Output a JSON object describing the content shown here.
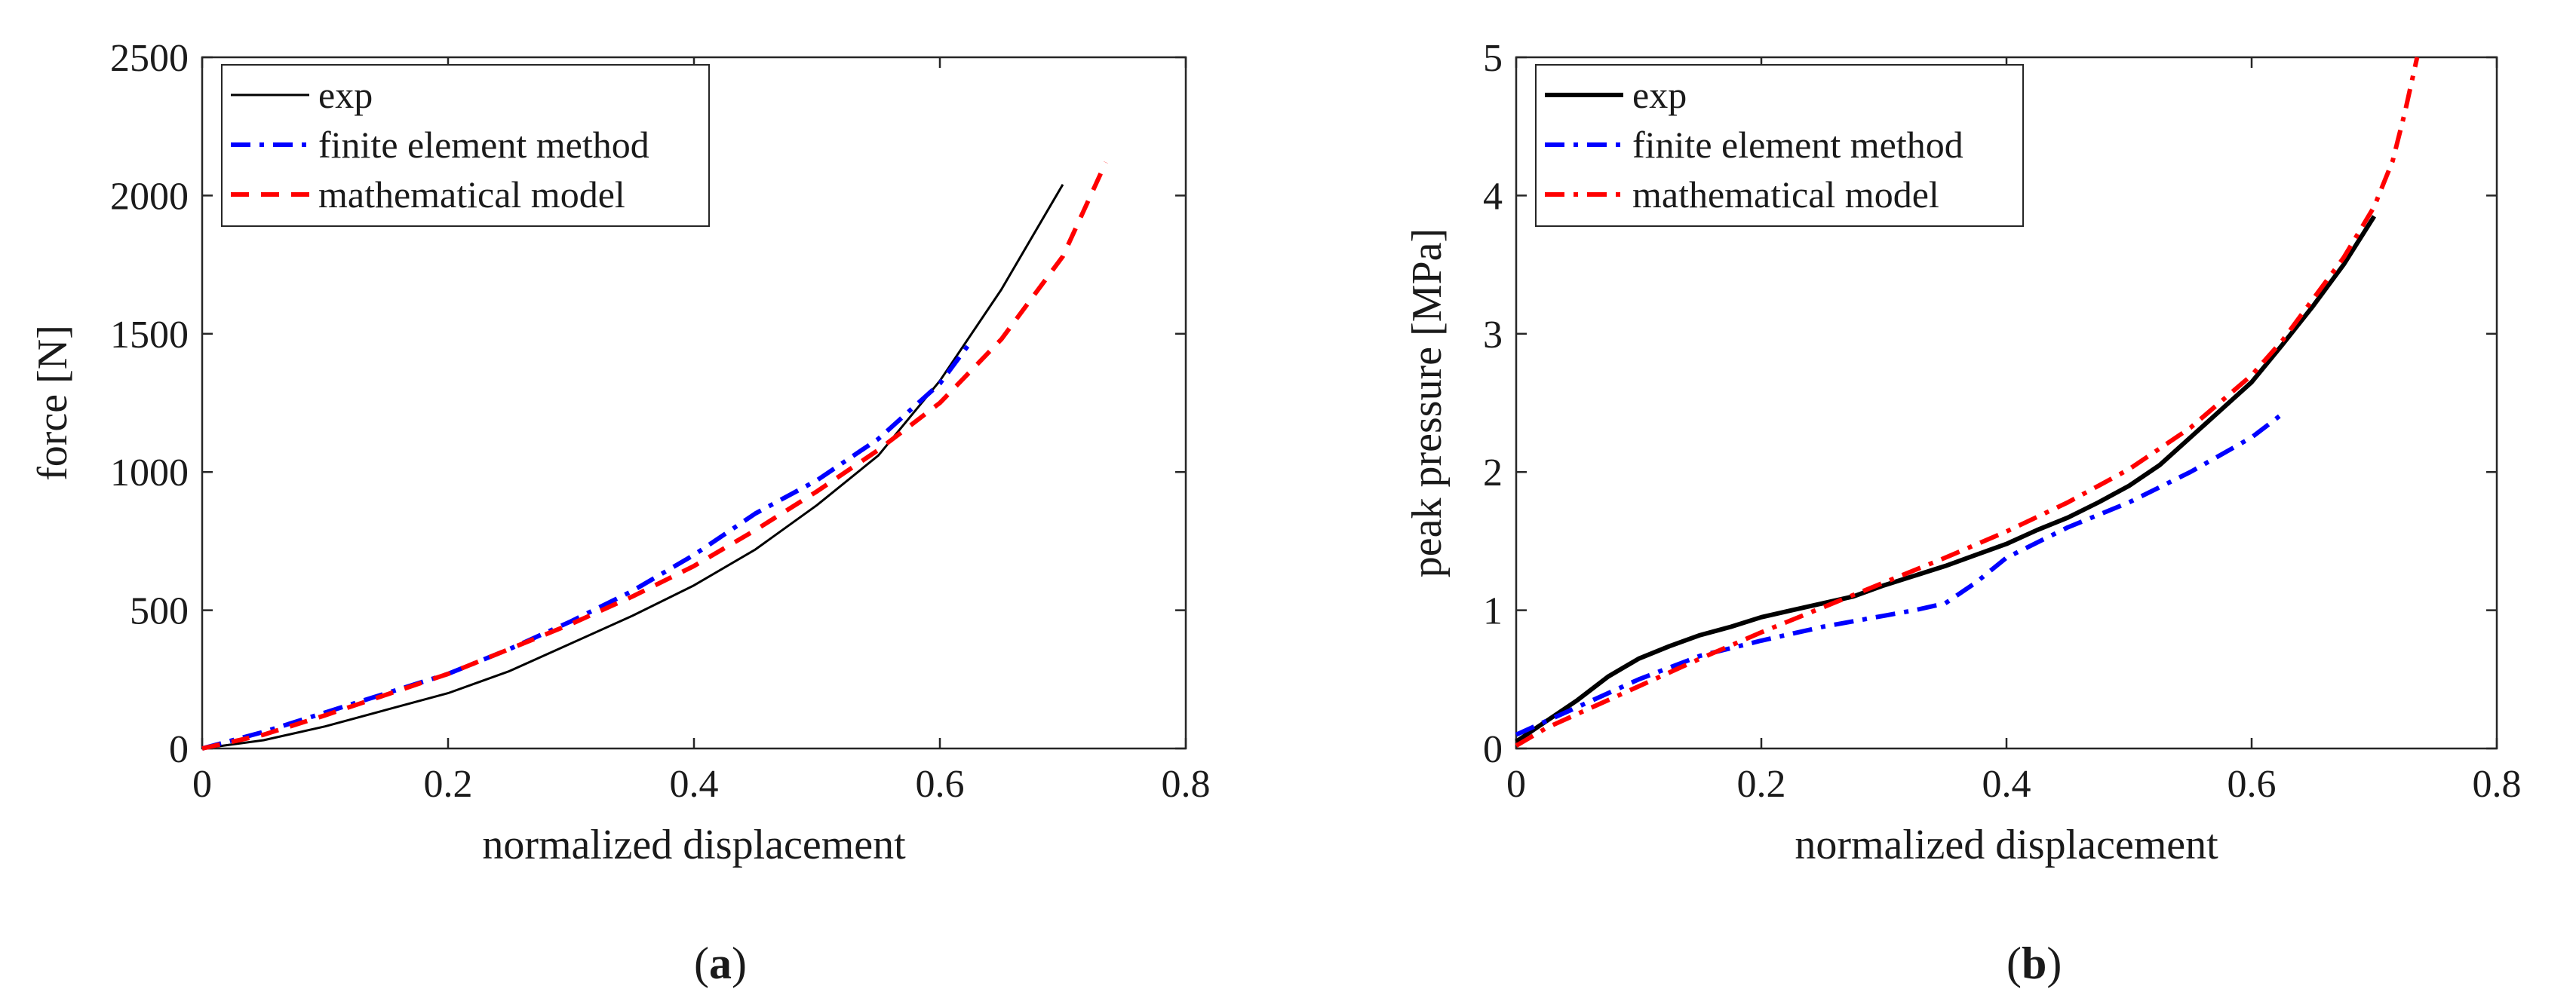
{
  "chart_data": [
    {
      "type": "line",
      "panel_label": {
        "open": "(",
        "letter": "a",
        "close": ")"
      },
      "xlabel": "normalized displacement",
      "ylabel": "force [N]",
      "xlim": [
        0,
        0.8
      ],
      "ylim": [
        0,
        2500
      ],
      "xticks": [
        0,
        0.2,
        0.4,
        0.6,
        0.8
      ],
      "yticks": [
        0,
        500,
        1000,
        1500,
        2000,
        2500
      ],
      "legend_position": "top-left",
      "grid": false,
      "series": [
        {
          "name": "exp",
          "color": "#000000",
          "style": "solid",
          "width": "thin",
          "x": [
            0,
            0.05,
            0.1,
            0.15,
            0.2,
            0.25,
            0.3,
            0.35,
            0.4,
            0.45,
            0.5,
            0.55,
            0.6,
            0.65,
            0.7
          ],
          "y": [
            0,
            30,
            80,
            140,
            200,
            280,
            380,
            480,
            590,
            720,
            880,
            1060,
            1330,
            1660,
            2040
          ]
        },
        {
          "name": "finite element method",
          "color": "#0000ff",
          "style": "dashdot",
          "width": "thick",
          "x": [
            0,
            0.05,
            0.1,
            0.15,
            0.2,
            0.25,
            0.3,
            0.35,
            0.4,
            0.45,
            0.5,
            0.55,
            0.6,
            0.625
          ],
          "y": [
            0,
            60,
            130,
            200,
            270,
            360,
            460,
            570,
            700,
            850,
            970,
            1120,
            1320,
            1470
          ]
        },
        {
          "name": "mathematical model",
          "color": "#ff0000",
          "style": "dashed",
          "width": "thick",
          "x": [
            0,
            0.05,
            0.1,
            0.15,
            0.2,
            0.25,
            0.3,
            0.35,
            0.4,
            0.45,
            0.5,
            0.55,
            0.6,
            0.65,
            0.7,
            0.735
          ],
          "y": [
            0,
            50,
            120,
            195,
            270,
            360,
            450,
            550,
            660,
            790,
            930,
            1080,
            1250,
            1480,
            1780,
            2120
          ]
        }
      ]
    },
    {
      "type": "line",
      "panel_label": {
        "open": "(",
        "letter": "b",
        "close": ")"
      },
      "xlabel": "normalized displacement",
      "ylabel": "peak pressure [MPa]",
      "xlim": [
        0,
        0.8
      ],
      "ylim": [
        0,
        5
      ],
      "xticks": [
        0,
        0.2,
        0.4,
        0.6,
        0.8
      ],
      "yticks": [
        0,
        1,
        2,
        3,
        4,
        5
      ],
      "legend_position": "top-left",
      "grid": false,
      "series": [
        {
          "name": "exp",
          "color": "#000000",
          "style": "solid",
          "width": "thick",
          "x": [
            0,
            0.025,
            0.05,
            0.075,
            0.1,
            0.125,
            0.15,
            0.175,
            0.2,
            0.225,
            0.25,
            0.275,
            0.3,
            0.325,
            0.35,
            0.375,
            0.4,
            0.425,
            0.45,
            0.475,
            0.5,
            0.525,
            0.55,
            0.575,
            0.6,
            0.625,
            0.65,
            0.675,
            0.7
          ],
          "y": [
            0.05,
            0.2,
            0.35,
            0.52,
            0.65,
            0.74,
            0.82,
            0.88,
            0.95,
            1.0,
            1.05,
            1.1,
            1.18,
            1.25,
            1.32,
            1.4,
            1.48,
            1.58,
            1.67,
            1.78,
            1.9,
            2.05,
            2.25,
            2.45,
            2.65,
            2.92,
            3.2,
            3.5,
            3.85
          ]
        },
        {
          "name": "finite element method",
          "color": "#0000ff",
          "style": "dashdot",
          "width": "thick",
          "x": [
            0,
            0.025,
            0.05,
            0.1,
            0.15,
            0.2,
            0.25,
            0.3,
            0.325,
            0.35,
            0.375,
            0.4,
            0.45,
            0.5,
            0.55,
            0.6,
            0.625
          ],
          "y": [
            0.1,
            0.2,
            0.3,
            0.5,
            0.67,
            0.78,
            0.88,
            0.96,
            1.0,
            1.05,
            1.2,
            1.38,
            1.6,
            1.78,
            2.0,
            2.25,
            2.42
          ]
        },
        {
          "name": "mathematical model",
          "color": "#ff0000",
          "style": "dashdot",
          "width": "thick",
          "x": [
            0,
            0.025,
            0.05,
            0.1,
            0.15,
            0.2,
            0.25,
            0.3,
            0.35,
            0.4,
            0.45,
            0.5,
            0.55,
            0.6,
            0.625,
            0.65,
            0.675,
            0.7,
            0.715,
            0.725,
            0.735
          ],
          "y": [
            0.02,
            0.15,
            0.25,
            0.45,
            0.65,
            0.84,
            1.02,
            1.2,
            1.38,
            1.57,
            1.78,
            2.02,
            2.32,
            2.7,
            2.95,
            3.25,
            3.55,
            3.92,
            4.25,
            4.6,
            5.0
          ]
        }
      ]
    }
  ]
}
